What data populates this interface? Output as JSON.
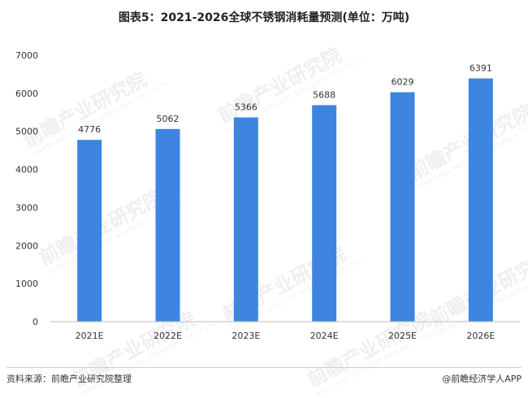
{
  "title": "图表5：2021-2026全球不锈钢消耗量预测(单位：万吨)",
  "source": "资料来源：前瞻产业研究院整理",
  "brand": "@前瞻经济学人APP",
  "watermark": "前瞻产业研究院",
  "watermark_sub": "QIANZHAN INDUSTRY RESEARCH INSTITUTE",
  "colors": {
    "bar": "#3d85e0",
    "axis": "#bfbfbf",
    "text": "#333333"
  },
  "chart_data": {
    "type": "bar",
    "title": "图表5：2021-2026全球不锈钢消耗量预测(单位：万吨)",
    "categories": [
      "2021E",
      "2022E",
      "2023E",
      "2024E",
      "2025E",
      "2026E"
    ],
    "values": [
      4776,
      5062,
      5366,
      5688,
      6029,
      6391
    ],
    "ylim": [
      0,
      7000
    ],
    "yticks": [
      0,
      1000,
      2000,
      3000,
      4000,
      5000,
      6000,
      7000
    ],
    "xlabel": "",
    "ylabel": "",
    "grid": false,
    "data_labels": true
  }
}
